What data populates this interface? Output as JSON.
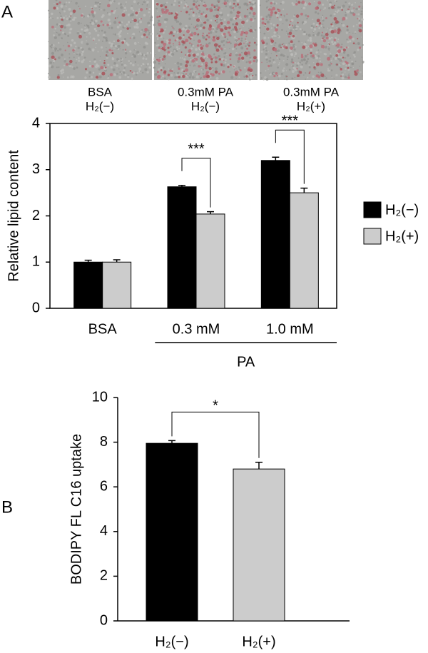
{
  "figure": {
    "panel_labels": [
      "A",
      "B"
    ],
    "image_captions": [
      [
        "BSA",
        "H₂(−)"
      ],
      [
        "0.3mM PA",
        "H₂(−)"
      ],
      [
        "0.3mM PA",
        "H₂(+)"
      ]
    ]
  },
  "chart_data": [
    {
      "type": "bar",
      "y_label": "Relative lipid content",
      "categories": [
        "BSA",
        "0.3 mM",
        "1.0 mM"
      ],
      "group_label": "PA",
      "series": [
        {
          "name": "H₂(−)",
          "color": "#000000",
          "values": [
            1.0,
            2.63,
            3.2
          ],
          "errors": [
            0.04,
            0.03,
            0.07
          ]
        },
        {
          "name": "H₂(+)",
          "color": "#cccccc",
          "values": [
            1.0,
            2.04,
            2.5
          ],
          "errors": [
            0.05,
            0.05,
            0.1
          ]
        }
      ],
      "ylim": [
        0,
        4
      ],
      "yticks": [
        0,
        1,
        2,
        3,
        4
      ],
      "legend": "right",
      "annotations": [
        {
          "text": "***",
          "category": "0.3 mM"
        },
        {
          "text": "***",
          "category": "1.0 mM"
        }
      ]
    },
    {
      "type": "bar",
      "y_label": "BODIPY FL C16 uptake",
      "categories": [
        "H₂(−)",
        "H₂(+)"
      ],
      "values": [
        7.95,
        6.8
      ],
      "errors": [
        0.12,
        0.3
      ],
      "colors": [
        "#000000",
        "#cccccc"
      ],
      "ylim": [
        0,
        10
      ],
      "yticks": [
        0,
        2,
        4,
        6,
        8,
        10
      ],
      "annotations": [
        {
          "text": "*"
        }
      ]
    }
  ]
}
